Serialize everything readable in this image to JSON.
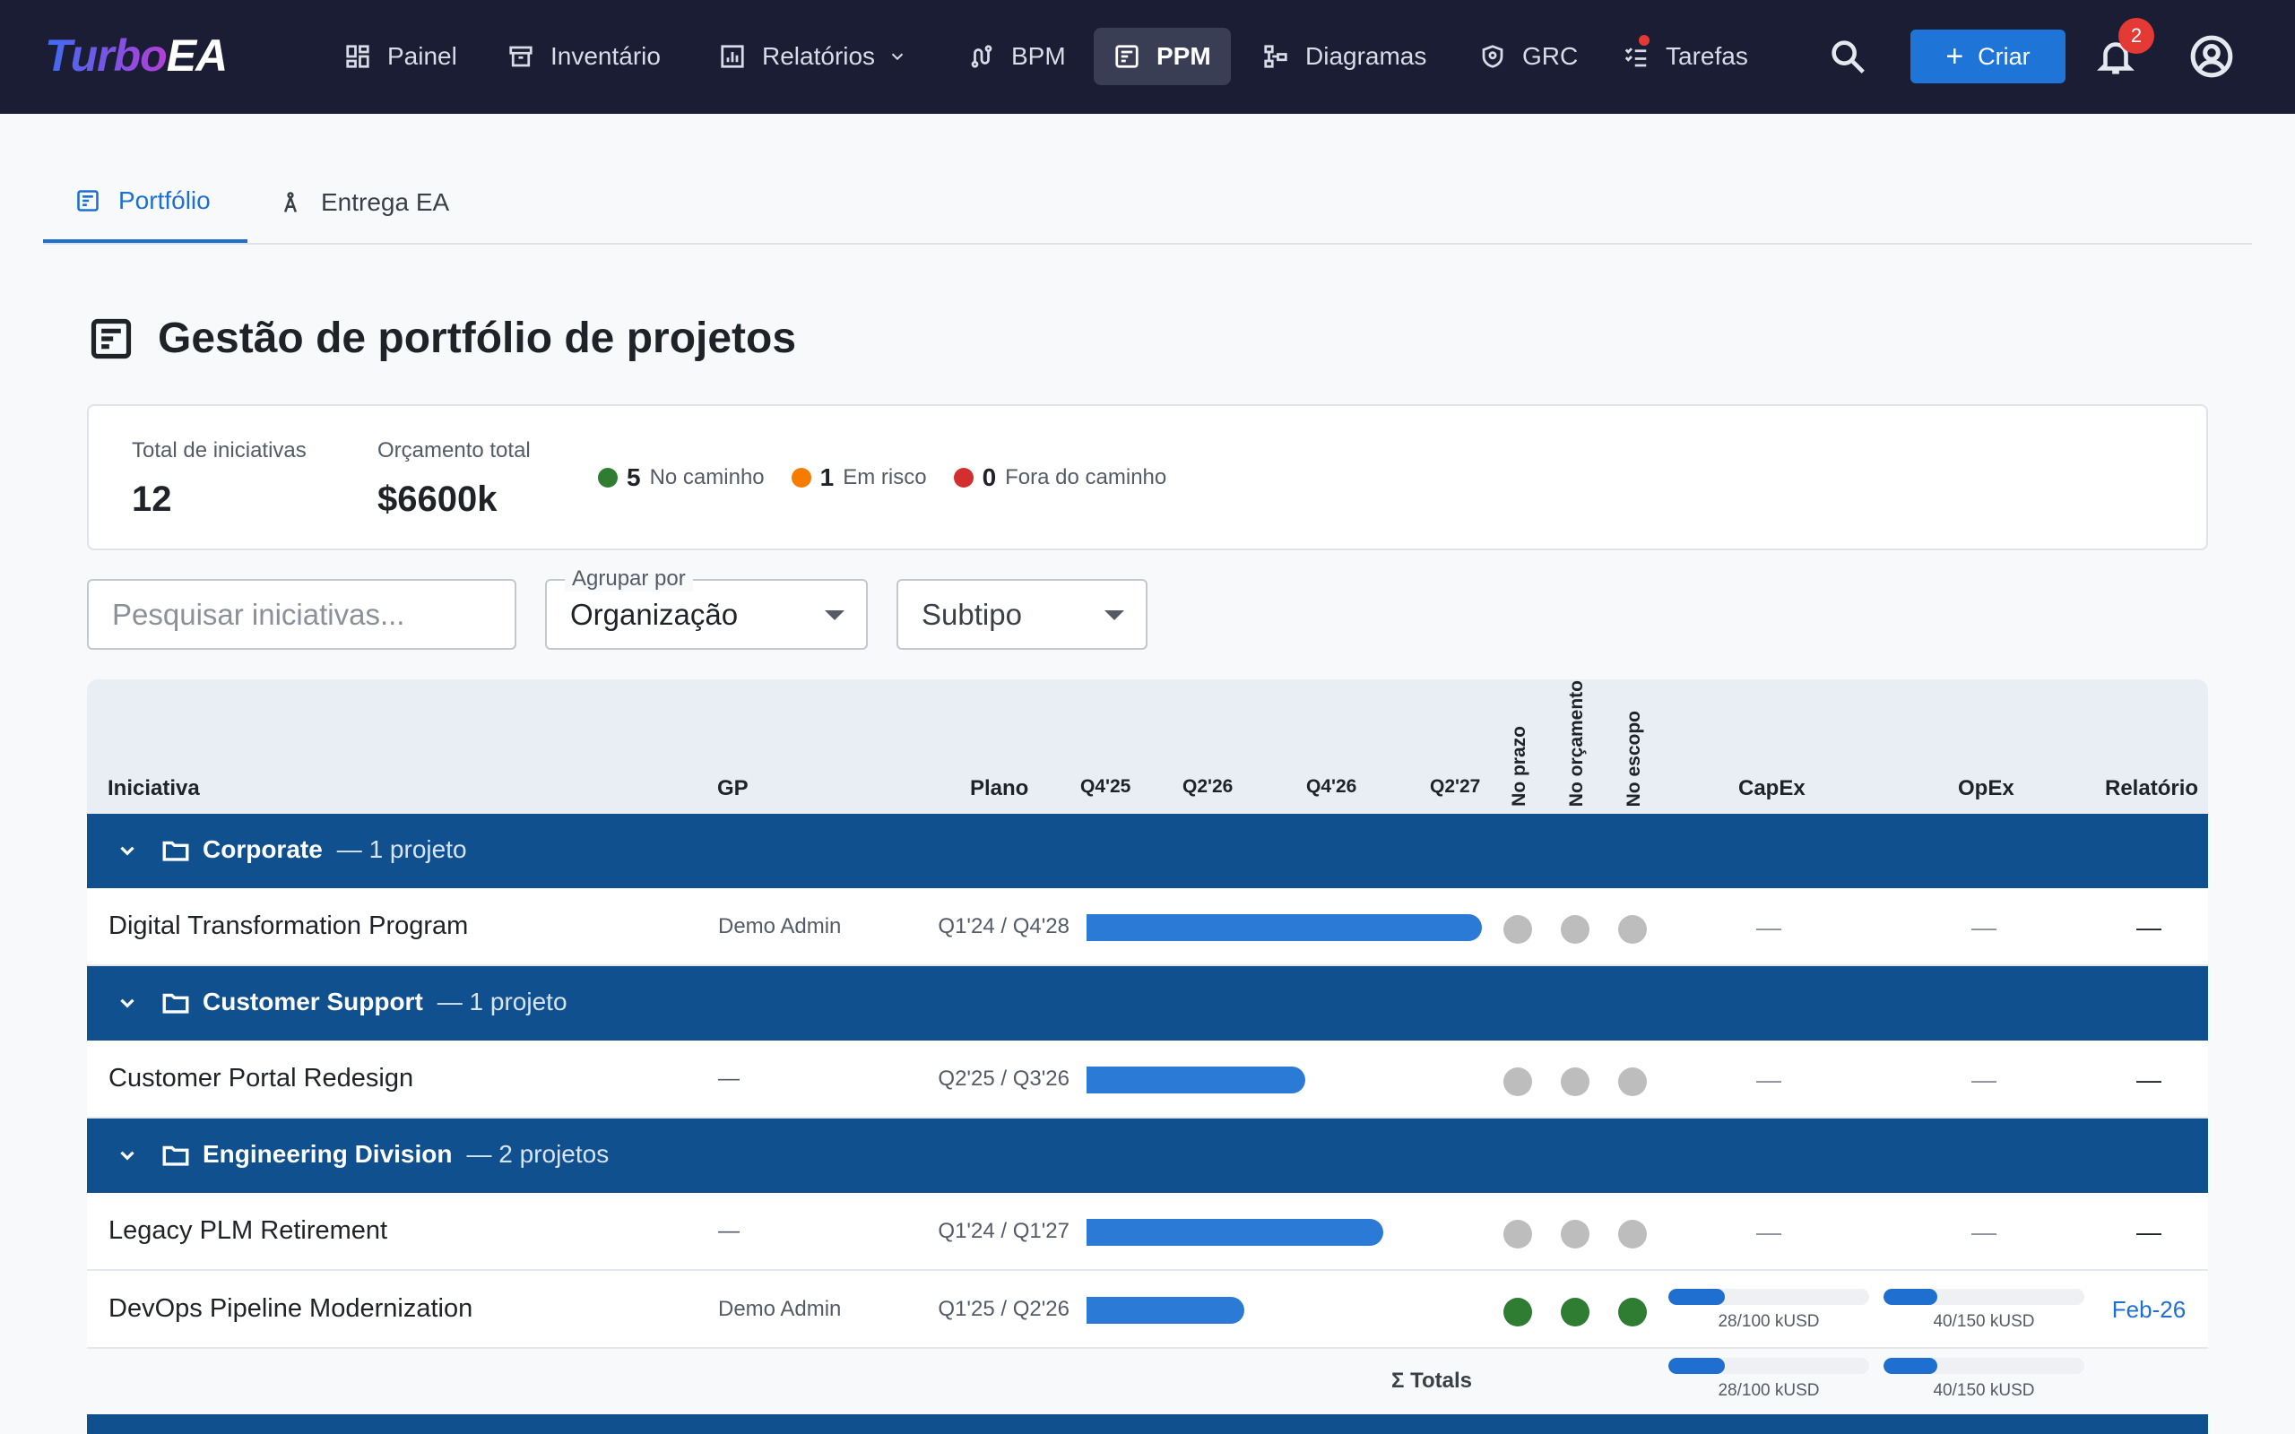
{
  "nav": {
    "logo_turbo": "Turbo",
    "logo_ea": "EA",
    "items": [
      {
        "label": "Painel",
        "icon": "dashboard-icon"
      },
      {
        "label": "Inventário",
        "icon": "archive-icon"
      },
      {
        "label": "Relatórios",
        "icon": "report-icon"
      },
      {
        "label": "BPM",
        "icon": "route-icon"
      },
      {
        "label": "PPM",
        "icon": "ppm-icon",
        "active": true
      },
      {
        "label": "Diagramas",
        "icon": "diagram-icon"
      },
      {
        "label": "GRC",
        "icon": "shield-icon"
      },
      {
        "label": "Tarefas",
        "icon": "tasks-icon"
      }
    ],
    "create_label": "Criar",
    "notifications_count": "2"
  },
  "tabs": [
    {
      "label": "Portfólio",
      "active": true
    },
    {
      "label": "Entrega EA",
      "active": false
    }
  ],
  "page": {
    "title": "Gestão de portfólio de projetos"
  },
  "summary": {
    "total_label": "Total de iniciativas",
    "total_value": "12",
    "budget_label": "Orçamento total",
    "budget_value": "$6600k",
    "on_track_count": "5",
    "on_track_label": "No caminho",
    "at_risk_count": "1",
    "at_risk_label": "Em risco",
    "off_track_count": "0",
    "off_track_label": "Fora do caminho",
    "colors": {
      "on_track": "#2e7d32",
      "at_risk": "#f57c00",
      "off_track": "#d32f2f"
    }
  },
  "filters": {
    "search_placeholder": "Pesquisar iniciativas...",
    "group_label": "Agrupar por",
    "group_value": "Organização",
    "subtype_value": "Subtipo"
  },
  "grid": {
    "columns": {
      "initiative": "Iniciativa",
      "pm": "GP",
      "plan": "Plano",
      "quarters": [
        "Q4'25",
        "Q2'26",
        "Q4'26",
        "Q2'27"
      ],
      "on_time": "No prazo",
      "on_budget": "No orçamento",
      "on_scope": "No escopo",
      "capex": "CapEx",
      "opex": "OpEx",
      "report": "Relatório"
    },
    "groups": [
      {
        "name": "Corporate",
        "count": "— 1 projeto",
        "projects": [
          {
            "name": "Digital Transformation Program",
            "pm": "Demo Admin",
            "plan": "Q1'24 / Q4'28",
            "time": "none",
            "budget": "none",
            "scope": "none",
            "capex": "—",
            "opex": "—",
            "report": "—"
          }
        ]
      },
      {
        "name": "Customer Support",
        "count": "— 1 projeto",
        "projects": [
          {
            "name": "Customer Portal Redesign",
            "pm": "—",
            "plan": "Q2'25 / Q3'26",
            "time": "none",
            "budget": "none",
            "scope": "none",
            "capex": "—",
            "opex": "—",
            "report": "—"
          }
        ]
      },
      {
        "name": "Engineering Division",
        "count": "— 2 projetos",
        "projects": [
          {
            "name": "Legacy PLM Retirement",
            "pm": "—",
            "plan": "Q1'24 / Q1'27",
            "time": "none",
            "budget": "none",
            "scope": "none",
            "capex": "—",
            "opex": "—",
            "report": "—"
          },
          {
            "name": "DevOps Pipeline Modernization",
            "pm": "Demo Admin",
            "plan": "Q1'25 / Q2'26",
            "time": "green",
            "budget": "green",
            "scope": "green",
            "capex": "28/100 kUSD",
            "capex_fraction": 0.28,
            "opex": "40/150 kUSD",
            "opex_fraction": 0.2667,
            "report": "Feb-26"
          }
        ]
      }
    ],
    "totals_label": "Σ Totals",
    "totals_capex": "28/100 kUSD",
    "totals_capex_fraction": 0.28,
    "totals_opex": "40/150 kUSD",
    "totals_opex_fraction": 0.2667,
    "status_colors": {
      "none": "#bdbdbd",
      "green": "#2e7d32"
    }
  }
}
